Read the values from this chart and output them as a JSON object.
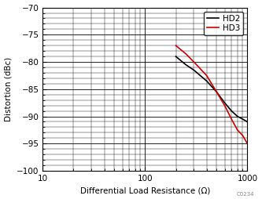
{
  "hd2_x": [
    200,
    250,
    300,
    400,
    500,
    600,
    700,
    800,
    900,
    1000
  ],
  "hd2_y": [
    -79.0,
    -80.5,
    -81.5,
    -83.5,
    -85.5,
    -87.5,
    -89.0,
    -90.0,
    -90.5,
    -91.0
  ],
  "hd3_x": [
    200,
    250,
    300,
    400,
    500,
    600,
    700,
    800,
    900,
    1000
  ],
  "hd3_y": [
    -77.0,
    -78.5,
    -80.0,
    -82.5,
    -85.5,
    -88.0,
    -90.5,
    -92.5,
    -93.5,
    -95.0
  ],
  "hd2_color": "#000000",
  "hd3_color": "#cc0000",
  "xlabel": "Differential Load Resistance (Ω)",
  "ylabel": "Distortion (dBc)",
  "xlim": [
    10,
    1000
  ],
  "ylim": [
    -100,
    -70
  ],
  "yticks": [
    -100,
    -95,
    -90,
    -85,
    -80,
    -75,
    -70
  ],
  "legend_labels": [
    "HD2",
    "HD3"
  ],
  "line_width": 1.2,
  "watermark": "C0234"
}
